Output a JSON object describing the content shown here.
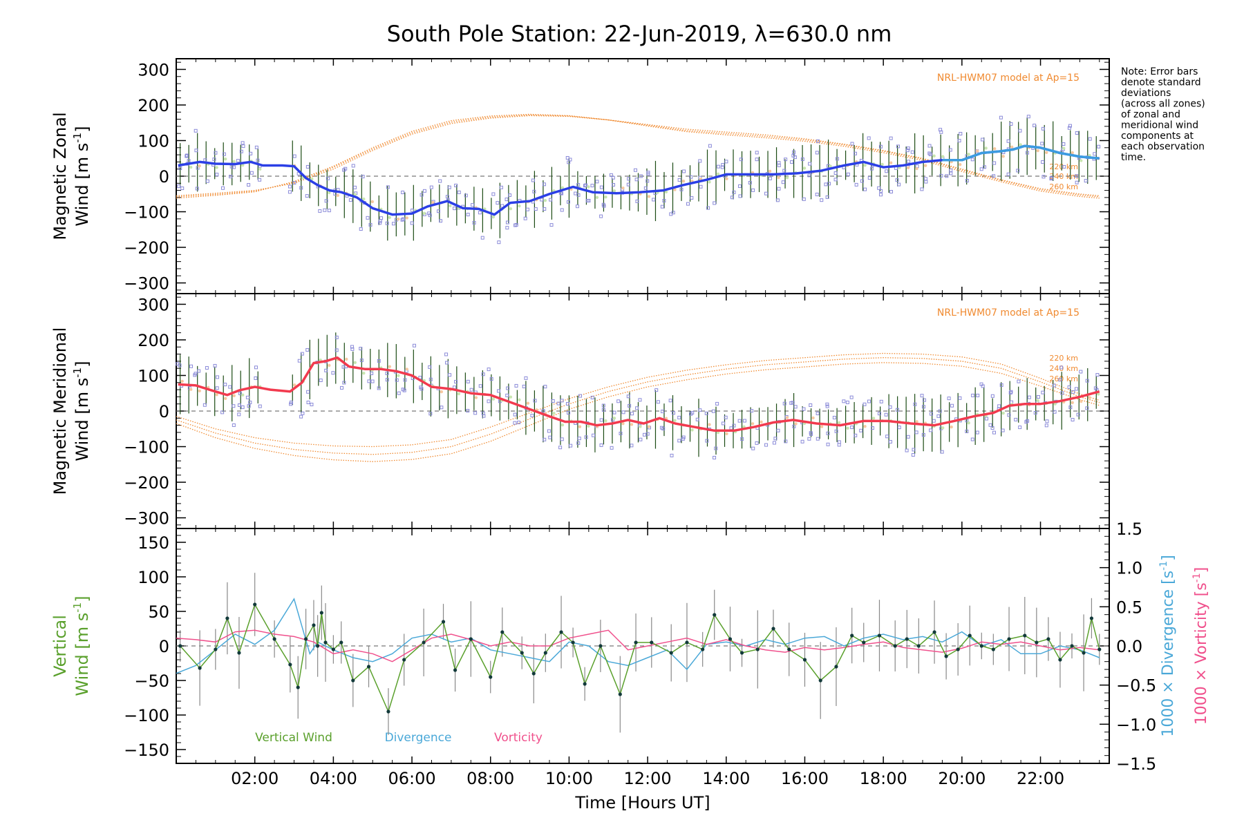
{
  "title": "South Pole Station: 22-Jun-2019, λ=630.0 nm",
  "note": [
    "Note: Error bars",
    "denote standard",
    "deviations",
    "(across all zones)",
    "of zonal and",
    "meridional wind",
    "components at",
    "each observation",
    "time."
  ],
  "colors": {
    "zonal": "#2b3fe6",
    "zonal_tail": "#3c9ce0",
    "meridional": "#f23a4e",
    "vertical": "#5aa02c",
    "divergence": "#4aa8d8",
    "vorticity": "#f0508c",
    "model": "#f08a30",
    "errorbar": "#1a4a12",
    "scatter": "#8a8ad8"
  },
  "chart_data": [
    {
      "type": "line",
      "panel": "zonal",
      "ylabel_line1": "Magnetic Zonal",
      "ylabel_line2": "Wind [m s",
      "ylabel_sup": "-1",
      "ylabel_close": "]",
      "ylim": [
        -330,
        330
      ],
      "yticks": [
        -300,
        -200,
        -100,
        0,
        100,
        200,
        300
      ],
      "ytick_labels": [
        "−300",
        "−200",
        "−100",
        "0",
        "100",
        "200",
        "300"
      ],
      "model_label": "NRL-HWM07 model at Ap=15",
      "altitude_labels": [
        "220 km",
        "240 km",
        "260 km"
      ],
      "series": [
        {
          "name": "Zonal wind",
          "x": [
            0.05,
            0.6,
            1.0,
            1.5,
            1.9,
            2.2,
            2.7,
            3.0,
            3.3,
            3.6,
            3.9,
            4.2,
            4.6,
            5.0,
            5.5,
            6.0,
            6.4,
            6.9,
            7.3,
            7.7,
            8.1,
            8.5,
            9.0,
            9.5,
            10.1,
            10.6,
            11.2,
            11.8,
            12.4,
            12.9,
            13.5,
            14.0,
            14.6,
            15.2,
            15.8,
            16.4,
            17.0,
            17.5,
            18.0,
            18.5,
            19.0,
            19.5,
            20.0,
            20.5,
            21.0,
            21.3,
            21.6,
            22.0,
            22.5,
            23.0,
            23.5
          ],
          "values": [
            30,
            40,
            35,
            34,
            40,
            30,
            30,
            28,
            -5,
            -25,
            -40,
            -45,
            -60,
            -90,
            -108,
            -105,
            -85,
            -70,
            -90,
            -92,
            -108,
            -75,
            -70,
            -50,
            -30,
            -45,
            -48,
            -45,
            -40,
            -25,
            -10,
            5,
            5,
            5,
            8,
            15,
            30,
            40,
            25,
            30,
            40,
            45,
            45,
            65,
            70,
            75,
            85,
            80,
            65,
            55,
            50
          ]
        },
        {
          "name": "HWM 220 km",
          "x": [
            0,
            1,
            2,
            3,
            4,
            5,
            6,
            7,
            8,
            9,
            10,
            11,
            12,
            13,
            14,
            15,
            16,
            17,
            18,
            19,
            20,
            21,
            22,
            23,
            23.5
          ],
          "values": [
            -55,
            -48,
            -40,
            -20,
            20,
            72,
            118,
            148,
            163,
            170,
            168,
            158,
            145,
            132,
            124,
            116,
            105,
            90,
            72,
            50,
            20,
            -10,
            -35,
            -50,
            -55
          ]
        },
        {
          "name": "HWM 240 km",
          "x": [
            0,
            1,
            2,
            3,
            4,
            5,
            6,
            7,
            8,
            9,
            10,
            11,
            12,
            13,
            14,
            15,
            16,
            17,
            18,
            19,
            20,
            21,
            22,
            23,
            23.5
          ],
          "values": [
            -58,
            -51,
            -42,
            -18,
            25,
            76,
            122,
            152,
            166,
            172,
            169,
            158,
            143,
            128,
            120,
            112,
            102,
            88,
            70,
            48,
            17,
            -12,
            -38,
            -53,
            -58
          ]
        },
        {
          "name": "HWM 260 km",
          "x": [
            0,
            1,
            2,
            3,
            4,
            5,
            6,
            7,
            8,
            9,
            10,
            11,
            12,
            13,
            14,
            15,
            16,
            17,
            18,
            19,
            20,
            21,
            22,
            23,
            23.5
          ],
          "values": [
            -62,
            -54,
            -44,
            -15,
            28,
            80,
            126,
            156,
            169,
            174,
            170,
            158,
            141,
            125,
            116,
            108,
            98,
            84,
            66,
            44,
            13,
            -16,
            -42,
            -57,
            -62
          ]
        }
      ]
    },
    {
      "type": "line",
      "panel": "meridional",
      "ylabel_line1": "Magnetic Meridional",
      "ylabel_line2": "Wind [m s",
      "ylabel_sup": "-1",
      "ylabel_close": "]",
      "ylim": [
        -330,
        330
      ],
      "yticks": [
        -300,
        -200,
        -100,
        0,
        100,
        200,
        300
      ],
      "ytick_labels": [
        "−300",
        "−200",
        "−100",
        "0",
        "100",
        "200",
        "300"
      ],
      "model_label": "NRL-HWM07 model at Ap=15",
      "altitude_labels": [
        "220 km",
        "240 km",
        "260 km"
      ],
      "series": [
        {
          "name": "Meridional wind",
          "x": [
            0.05,
            0.5,
            0.9,
            1.3,
            1.6,
            2.0,
            2.4,
            2.9,
            3.2,
            3.5,
            3.8,
            4.1,
            4.4,
            4.8,
            5.2,
            5.6,
            6.0,
            6.5,
            7.0,
            7.5,
            8.0,
            8.5,
            9.0,
            9.5,
            9.9,
            10.3,
            10.7,
            11.1,
            11.5,
            11.9,
            12.3,
            12.7,
            13.2,
            13.7,
            14.2,
            14.7,
            15.2,
            15.7,
            16.3,
            16.9,
            17.5,
            18.1,
            18.7,
            19.3,
            19.8,
            20.3,
            20.8,
            21.2,
            21.6,
            22.0,
            22.5,
            23.0,
            23.5
          ],
          "values": [
            75,
            72,
            58,
            45,
            58,
            68,
            60,
            55,
            80,
            135,
            140,
            150,
            125,
            118,
            118,
            112,
            100,
            68,
            62,
            50,
            45,
            25,
            5,
            -15,
            -30,
            -30,
            -40,
            -35,
            -25,
            -35,
            -20,
            -35,
            -45,
            -55,
            -55,
            -45,
            -32,
            -25,
            -35,
            -40,
            -28,
            -28,
            -35,
            -40,
            -28,
            -15,
            -5,
            15,
            20,
            20,
            28,
            40,
            55
          ]
        },
        {
          "name": "HWM 220 km",
          "x": [
            0,
            1,
            2,
            3,
            4,
            5,
            6,
            7,
            8,
            9,
            10,
            11,
            12,
            13,
            14,
            15,
            16,
            17,
            18,
            19,
            20,
            21,
            22,
            23,
            23.5
          ],
          "values": [
            -15,
            -50,
            -75,
            -90,
            -98,
            -100,
            -95,
            -80,
            -45,
            -5,
            35,
            68,
            95,
            115,
            130,
            142,
            150,
            158,
            162,
            160,
            152,
            132,
            92,
            48,
            30
          ]
        },
        {
          "name": "HWM 240 km",
          "x": [
            0,
            1,
            2,
            3,
            4,
            5,
            6,
            7,
            8,
            9,
            10,
            11,
            12,
            13,
            14,
            15,
            16,
            17,
            18,
            19,
            20,
            21,
            22,
            23,
            23.5
          ],
          "values": [
            -25,
            -62,
            -90,
            -108,
            -118,
            -122,
            -116,
            -100,
            -65,
            -22,
            20,
            55,
            82,
            102,
            118,
            130,
            138,
            146,
            150,
            148,
            140,
            120,
            82,
            40,
            24
          ]
        },
        {
          "name": "HWM 260 km",
          "x": [
            0,
            1,
            2,
            3,
            4,
            5,
            6,
            7,
            8,
            9,
            10,
            11,
            12,
            13,
            14,
            15,
            16,
            17,
            18,
            19,
            20,
            21,
            22,
            23,
            23.5
          ],
          "values": [
            -35,
            -75,
            -105,
            -125,
            -137,
            -142,
            -136,
            -120,
            -85,
            -40,
            5,
            40,
            68,
            88,
            104,
            116,
            124,
            132,
            136,
            134,
            126,
            106,
            70,
            32,
            16
          ]
        }
      ]
    },
    {
      "type": "line",
      "panel": "vertical",
      "ylabel_line1": "Vertical",
      "ylabel_line2": "Wind [m s",
      "ylabel_sup": "-1",
      "ylabel_close": "]",
      "right_label1_text": "1000 × Divergence [s",
      "right_label2_text": "1000 × Vorticity [s",
      "right_sup": "-1",
      "right_close": "]",
      "ylim": [
        -170,
        170
      ],
      "yticks": [
        -150,
        -100,
        -50,
        0,
        50,
        100,
        150
      ],
      "ytick_labels": [
        "−150",
        "−100",
        "−50",
        "0",
        "50",
        "100",
        "150"
      ],
      "y2lim": [
        -1.5,
        1.5
      ],
      "y2ticks": [
        -1.5,
        -1.0,
        -0.5,
        0.0,
        0.5,
        1.0,
        1.5
      ],
      "y2tick_labels": [
        "−1.5",
        "−1.0",
        "−0.5",
        "0.0",
        "0.5",
        "1.0",
        "1.5"
      ],
      "legend": [
        "Vertical Wind",
        "Divergence",
        "Vorticity"
      ],
      "series": [
        {
          "name": "Vertical Wind",
          "x": [
            0.1,
            0.6,
            1.0,
            1.3,
            1.6,
            2.0,
            2.5,
            2.9,
            3.1,
            3.3,
            3.5,
            3.6,
            3.7,
            3.8,
            4.0,
            4.2,
            4.5,
            4.9,
            5.4,
            5.8,
            6.3,
            6.8,
            7.1,
            7.5,
            8.0,
            8.3,
            8.8,
            9.1,
            9.4,
            9.8,
            10.1,
            10.4,
            10.8,
            11.3,
            11.7,
            12.1,
            12.6,
            13.0,
            13.4,
            13.7,
            14.1,
            14.4,
            14.8,
            15.2,
            15.6,
            16.0,
            16.4,
            16.8,
            17.2,
            17.5,
            17.9,
            18.3,
            18.6,
            18.9,
            19.3,
            19.6,
            19.9,
            20.2,
            20.5,
            20.8,
            21.2,
            21.6,
            21.9,
            22.2,
            22.5,
            22.8,
            23.1,
            23.3,
            23.5
          ],
          "values": [
            0,
            -32,
            -5,
            40,
            -10,
            60,
            10,
            -27,
            -60,
            10,
            30,
            0,
            48,
            5,
            -5,
            5,
            -50,
            -30,
            -95,
            -20,
            5,
            35,
            -35,
            10,
            -45,
            20,
            -10,
            -40,
            -10,
            20,
            5,
            -55,
            0,
            -70,
            5,
            5,
            -10,
            5,
            -5,
            45,
            10,
            -10,
            -5,
            25,
            -5,
            -20,
            -50,
            -30,
            15,
            5,
            15,
            0,
            10,
            0,
            20,
            -15,
            -5,
            15,
            0,
            -5,
            10,
            15,
            5,
            10,
            -20,
            0,
            -10,
            40,
            -5
          ]
        },
        {
          "name": "Divergence",
          "x": [
            0,
            0.5,
            1.0,
            1.5,
            2.0,
            2.5,
            3.0,
            3.2,
            3.4,
            3.6,
            3.8,
            4.0,
            4.5,
            5.0,
            5.5,
            6.0,
            6.5,
            7.0,
            7.5,
            8.0,
            8.5,
            9.0,
            9.5,
            10.0,
            10.5,
            11.0,
            11.5,
            12.0,
            12.5,
            13.0,
            13.5,
            14.0,
            14.5,
            15.0,
            15.5,
            16.0,
            16.5,
            17.0,
            17.5,
            18.0,
            18.5,
            19.0,
            19.5,
            20.0,
            20.5,
            21.0,
            21.5,
            22.0,
            22.5,
            23.0,
            23.5
          ],
          "values": [
            -0.35,
            -0.25,
            -0.05,
            0.15,
            0.02,
            0.2,
            0.6,
            0.25,
            -0.1,
            0.05,
            0.0,
            -0.05,
            -0.15,
            -0.2,
            -0.1,
            0.1,
            0.15,
            0.05,
            0.1,
            -0.05,
            -0.1,
            -0.15,
            -0.2,
            0.05,
            0.0,
            -0.2,
            -0.25,
            -0.15,
            -0.05,
            -0.3,
            0.02,
            0.05,
            0.0,
            0.08,
            0.02,
            0.1,
            0.12,
            0.0,
            0.1,
            0.15,
            0.08,
            0.12,
            0.05,
            0.18,
            0.0,
            0.08,
            -0.1,
            -0.1,
            0.0,
            -0.05,
            -0.15
          ]
        },
        {
          "name": "Vorticity",
          "x": [
            0,
            0.5,
            1.0,
            1.5,
            2.0,
            2.5,
            3.0,
            3.5,
            4.0,
            4.5,
            5.0,
            5.5,
            6.0,
            6.5,
            7.0,
            7.5,
            8.0,
            8.5,
            9.0,
            9.5,
            10.0,
            10.5,
            11.0,
            11.5,
            12.0,
            12.5,
            13.0,
            13.5,
            14.0,
            14.5,
            15.0,
            15.5,
            16.0,
            16.5,
            17.0,
            17.5,
            18.0,
            18.5,
            19.0,
            19.5,
            20.0,
            20.5,
            21.0,
            21.5,
            22.0,
            22.5,
            23.0,
            23.5
          ],
          "values": [
            0.1,
            0.08,
            0.05,
            0.18,
            0.2,
            0.15,
            0.12,
            0.05,
            -0.1,
            -0.05,
            -0.1,
            -0.2,
            -0.05,
            0.1,
            0.15,
            0.08,
            0.0,
            0.05,
            0.0,
            0.0,
            0.1,
            0.15,
            0.2,
            -0.05,
            0.0,
            0.05,
            0.1,
            0.02,
            0.08,
            0.0,
            -0.05,
            -0.08,
            -0.02,
            -0.05,
            -0.02,
            0.02,
            0.05,
            -0.02,
            -0.05,
            -0.08,
            -0.03,
            0.05,
            0.02,
            0.05,
            0.0,
            -0.05,
            -0.02,
            -0.05
          ]
        }
      ]
    }
  ],
  "xaxis": {
    "xlim": [
      0,
      23.75
    ],
    "ticks": [
      2,
      4,
      6,
      8,
      10,
      12,
      14,
      16,
      18,
      20,
      22
    ],
    "tick_labels": [
      "02:00",
      "04:00",
      "06:00",
      "08:00",
      "10:00",
      "12:00",
      "14:00",
      "16:00",
      "18:00",
      "20:00",
      "22:00"
    ],
    "label": "Time [Hours UT]"
  }
}
